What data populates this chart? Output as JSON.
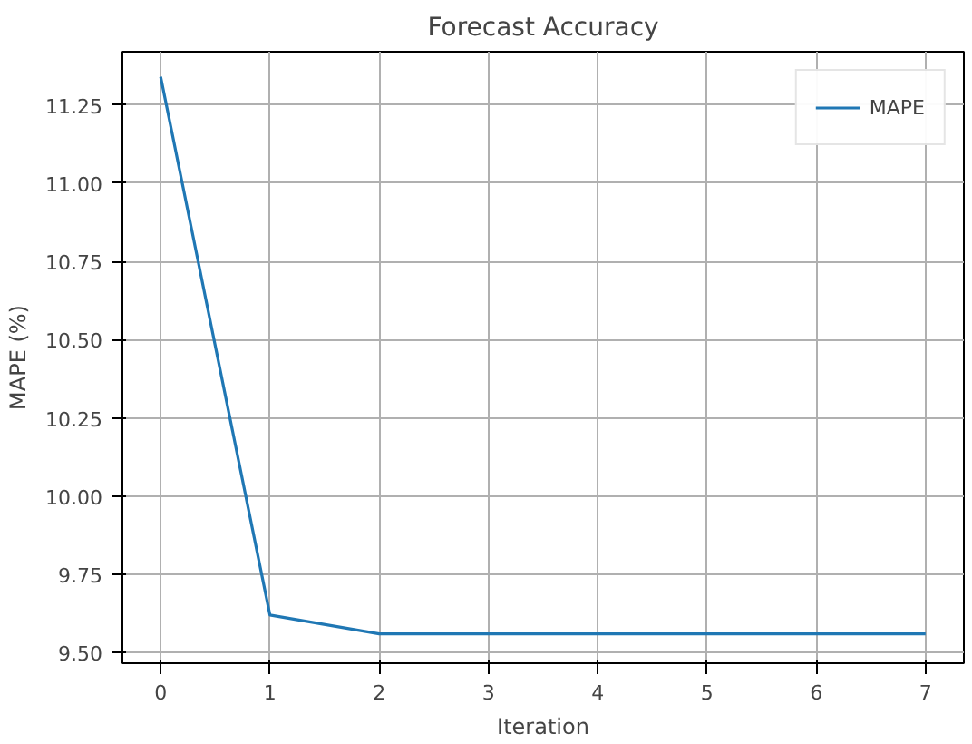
{
  "chart_data": {
    "type": "line",
    "title": "Forecast Accuracy",
    "xlabel": "Iteration",
    "ylabel": "MAPE (%)",
    "x": [
      0,
      1,
      2,
      3,
      4,
      5,
      6,
      7
    ],
    "series": [
      {
        "name": "MAPE",
        "color": "#1f77b4",
        "values": [
          11.34,
          9.62,
          9.56,
          9.56,
          9.56,
          9.56,
          9.56,
          9.56
        ]
      }
    ],
    "xlim": [
      -0.35,
      7.35
    ],
    "xticks": [
      0,
      1,
      2,
      3,
      4,
      5,
      6,
      7
    ],
    "ylim": [
      9.466,
      11.42
    ],
    "yticks": [
      {
        "value": 9.5,
        "label": "9.50"
      },
      {
        "value": 9.75,
        "label": "9.75"
      },
      {
        "value": 10.0,
        "label": "10.00"
      },
      {
        "value": 10.25,
        "label": "10.25"
      },
      {
        "value": 10.5,
        "label": "10.50"
      },
      {
        "value": 10.75,
        "label": "10.75"
      },
      {
        "value": 11.0,
        "label": "11.00"
      },
      {
        "value": 11.25,
        "label": "11.25"
      }
    ],
    "grid": true,
    "legend": "top right"
  }
}
